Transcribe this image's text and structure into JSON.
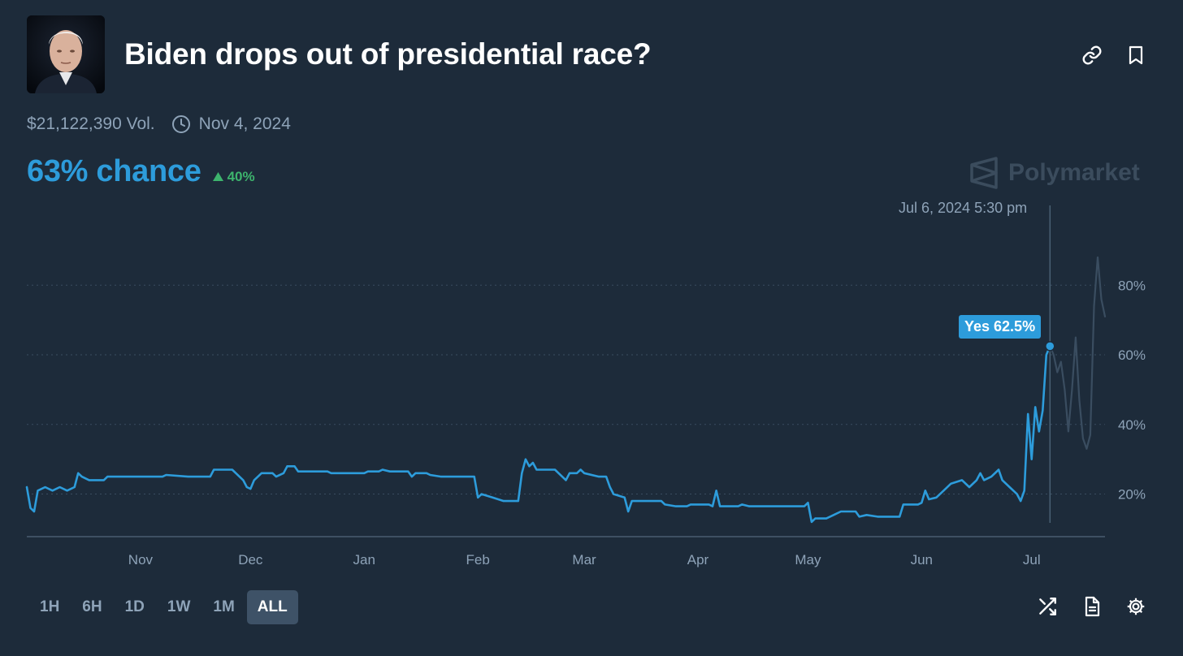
{
  "market": {
    "title": "Biden drops out of presidential race?",
    "volume": "$21,122,390 Vol.",
    "end_date": "Nov 4, 2024",
    "chance": "63% chance",
    "change": "40%",
    "brand": "Polymarket"
  },
  "icons": {
    "link": "link-icon",
    "bookmark": "bookmark-icon",
    "clock": "clock-icon",
    "up": "triangle-up-icon",
    "shuffle": "shuffle-icon",
    "document": "document-icon",
    "settings": "gear-icon"
  },
  "colors": {
    "background": "#1d2b3a",
    "accent": "#2d9cdb",
    "positive": "#3db46d",
    "muted_line": "#3a4d60"
  },
  "hover": {
    "date": "Jul 6, 2024 5:30 pm",
    "label": "Yes 62.5%",
    "x": "2024-07-06",
    "y": 62.5
  },
  "time_ranges": [
    {
      "label": "1H",
      "active": false
    },
    {
      "label": "6H",
      "active": false
    },
    {
      "label": "1D",
      "active": false
    },
    {
      "label": "1W",
      "active": false
    },
    {
      "label": "1M",
      "active": false
    },
    {
      "label": "ALL",
      "active": true
    }
  ],
  "chart_data": {
    "type": "line",
    "x_type": "date",
    "xlim": [
      "2023-10-01",
      "2024-07-21"
    ],
    "ylim": [
      8,
      95
    ],
    "ytick_labels": [
      "20%",
      "40%",
      "60%",
      "80%"
    ],
    "ytick_values": [
      20,
      40,
      60,
      80
    ],
    "xtick_labels": [
      "Nov",
      "Dec",
      "Jan",
      "Feb",
      "Mar",
      "Apr",
      "May",
      "Jun",
      "Jul"
    ],
    "xtick_values": [
      "2023-11-01",
      "2023-12-01",
      "2024-01-01",
      "2024-02-01",
      "2024-03-01",
      "2024-04-01",
      "2024-05-01",
      "2024-06-01",
      "2024-07-01"
    ],
    "grid": true,
    "series": [
      {
        "highlighted": true,
        "points": [
          [
            "2023-10-01",
            22
          ],
          [
            "2023-10-02",
            16
          ],
          [
            "2023-10-03",
            15
          ],
          [
            "2023-10-04",
            21
          ],
          [
            "2023-10-06",
            22
          ],
          [
            "2023-10-08",
            21
          ],
          [
            "2023-10-10",
            22
          ],
          [
            "2023-10-12",
            21
          ],
          [
            "2023-10-14",
            22
          ],
          [
            "2023-10-15",
            26
          ],
          [
            "2023-10-16",
            25
          ],
          [
            "2023-10-18",
            24
          ],
          [
            "2023-10-22",
            24
          ],
          [
            "2023-10-23",
            25
          ],
          [
            "2023-11-01",
            25
          ],
          [
            "2023-11-07",
            25
          ],
          [
            "2023-11-08",
            25.5
          ],
          [
            "2023-11-14",
            25
          ],
          [
            "2023-11-20",
            25
          ],
          [
            "2023-11-21",
            27
          ],
          [
            "2023-11-26",
            27
          ],
          [
            "2023-11-27",
            26
          ],
          [
            "2023-11-29",
            24
          ],
          [
            "2023-11-30",
            22
          ],
          [
            "2023-12-01",
            21.5
          ],
          [
            "2023-12-02",
            24
          ],
          [
            "2023-12-04",
            26
          ],
          [
            "2023-12-07",
            26
          ],
          [
            "2023-12-08",
            25
          ],
          [
            "2023-12-10",
            26
          ],
          [
            "2023-12-11",
            28
          ],
          [
            "2023-12-13",
            28
          ],
          [
            "2023-12-14",
            26.5
          ],
          [
            "2023-12-22",
            26.5
          ],
          [
            "2023-12-23",
            26
          ],
          [
            "2024-01-01",
            26
          ],
          [
            "2024-01-02",
            26.5
          ],
          [
            "2024-01-05",
            26.5
          ],
          [
            "2024-01-06",
            27
          ],
          [
            "2024-01-08",
            26.5
          ],
          [
            "2024-01-13",
            26.5
          ],
          [
            "2024-01-14",
            25
          ],
          [
            "2024-01-15",
            26
          ],
          [
            "2024-01-18",
            26
          ],
          [
            "2024-01-19",
            25.5
          ],
          [
            "2024-01-22",
            25
          ],
          [
            "2024-01-31",
            25
          ],
          [
            "2024-02-01",
            19
          ],
          [
            "2024-02-02",
            20
          ],
          [
            "2024-02-05",
            19
          ],
          [
            "2024-02-08",
            18
          ],
          [
            "2024-02-12",
            18
          ],
          [
            "2024-02-13",
            26
          ],
          [
            "2024-02-14",
            30
          ],
          [
            "2024-02-15",
            28
          ],
          [
            "2024-02-16",
            29
          ],
          [
            "2024-02-17",
            27
          ],
          [
            "2024-02-22",
            27
          ],
          [
            "2024-02-23",
            26
          ],
          [
            "2024-02-25",
            24
          ],
          [
            "2024-02-26",
            26
          ],
          [
            "2024-02-28",
            26
          ],
          [
            "2024-02-29",
            27
          ],
          [
            "2024-03-01",
            26
          ],
          [
            "2024-03-05",
            25
          ],
          [
            "2024-03-07",
            25
          ],
          [
            "2024-03-08",
            22
          ],
          [
            "2024-03-09",
            20
          ],
          [
            "2024-03-12",
            19
          ],
          [
            "2024-03-13",
            15
          ],
          [
            "2024-03-14",
            18
          ],
          [
            "2024-03-22",
            18
          ],
          [
            "2024-03-23",
            17
          ],
          [
            "2024-03-26",
            16.5
          ],
          [
            "2024-03-29",
            16.5
          ],
          [
            "2024-03-30",
            17
          ],
          [
            "2024-04-04",
            17
          ],
          [
            "2024-04-05",
            16.5
          ],
          [
            "2024-04-06",
            21
          ],
          [
            "2024-04-07",
            16.5
          ],
          [
            "2024-04-12",
            16.5
          ],
          [
            "2024-04-13",
            17
          ],
          [
            "2024-04-15",
            16.5
          ],
          [
            "2024-04-30",
            16.5
          ],
          [
            "2024-05-01",
            17.5
          ],
          [
            "2024-05-02",
            12
          ],
          [
            "2024-05-03",
            13
          ],
          [
            "2024-05-06",
            13
          ],
          [
            "2024-05-08",
            14
          ],
          [
            "2024-05-10",
            15
          ],
          [
            "2024-05-14",
            15
          ],
          [
            "2024-05-15",
            13.5
          ],
          [
            "2024-05-17",
            14
          ],
          [
            "2024-05-20",
            13.5
          ],
          [
            "2024-05-26",
            13.5
          ],
          [
            "2024-05-27",
            17
          ],
          [
            "2024-05-31",
            17
          ],
          [
            "2024-06-01",
            17.5
          ],
          [
            "2024-06-02",
            21
          ],
          [
            "2024-06-03",
            18.5
          ],
          [
            "2024-06-05",
            19
          ],
          [
            "2024-06-07",
            21
          ],
          [
            "2024-06-09",
            23
          ],
          [
            "2024-06-12",
            24
          ],
          [
            "2024-06-14",
            22
          ],
          [
            "2024-06-16",
            24
          ],
          [
            "2024-06-17",
            26
          ],
          [
            "2024-06-18",
            24
          ],
          [
            "2024-06-20",
            25
          ],
          [
            "2024-06-22",
            27
          ],
          [
            "2024-06-23",
            24
          ],
          [
            "2024-06-25",
            22
          ],
          [
            "2024-06-27",
            20
          ],
          [
            "2024-06-28",
            18
          ],
          [
            "2024-06-29",
            21
          ],
          [
            "2024-06-30",
            43
          ],
          [
            "2024-07-01",
            30
          ],
          [
            "2024-07-02",
            45
          ],
          [
            "2024-07-03",
            38
          ],
          [
            "2024-07-04",
            44
          ],
          [
            "2024-07-05",
            60
          ],
          [
            "2024-07-06",
            62.5
          ]
        ]
      },
      {
        "highlighted": false,
        "points": [
          [
            "2024-07-06",
            62.5
          ],
          [
            "2024-07-07",
            60
          ],
          [
            "2024-07-08",
            55
          ],
          [
            "2024-07-09",
            58
          ],
          [
            "2024-07-10",
            50
          ],
          [
            "2024-07-11",
            38
          ],
          [
            "2024-07-12",
            50
          ],
          [
            "2024-07-13",
            65
          ],
          [
            "2024-07-14",
            47
          ],
          [
            "2024-07-15",
            36
          ],
          [
            "2024-07-16",
            33
          ],
          [
            "2024-07-17",
            37
          ],
          [
            "2024-07-18",
            74
          ],
          [
            "2024-07-19",
            88
          ],
          [
            "2024-07-20",
            76
          ],
          [
            "2024-07-21",
            71
          ]
        ]
      }
    ]
  }
}
